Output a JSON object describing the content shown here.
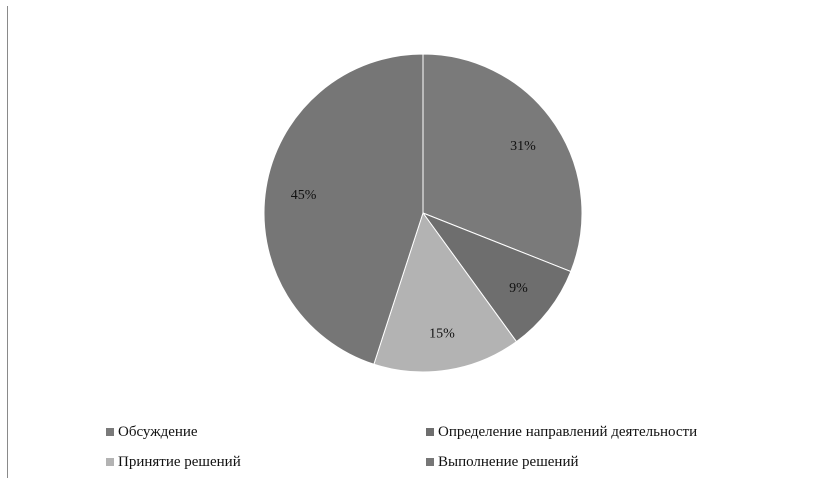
{
  "chart_data": {
    "type": "pie",
    "categories": [
      "Обсуждение",
      "Определение направлений деятельности",
      "Принятие решений",
      "Выполнение решений"
    ],
    "values": [
      31,
      9,
      15,
      45
    ],
    "data_labels": [
      "31%",
      "9%",
      "15%",
      "45%"
    ],
    "colors": [
      "#7a7a7a",
      "#6e6e6e",
      "#b3b3b3",
      "#767676"
    ],
    "legend_position": "bottom"
  }
}
